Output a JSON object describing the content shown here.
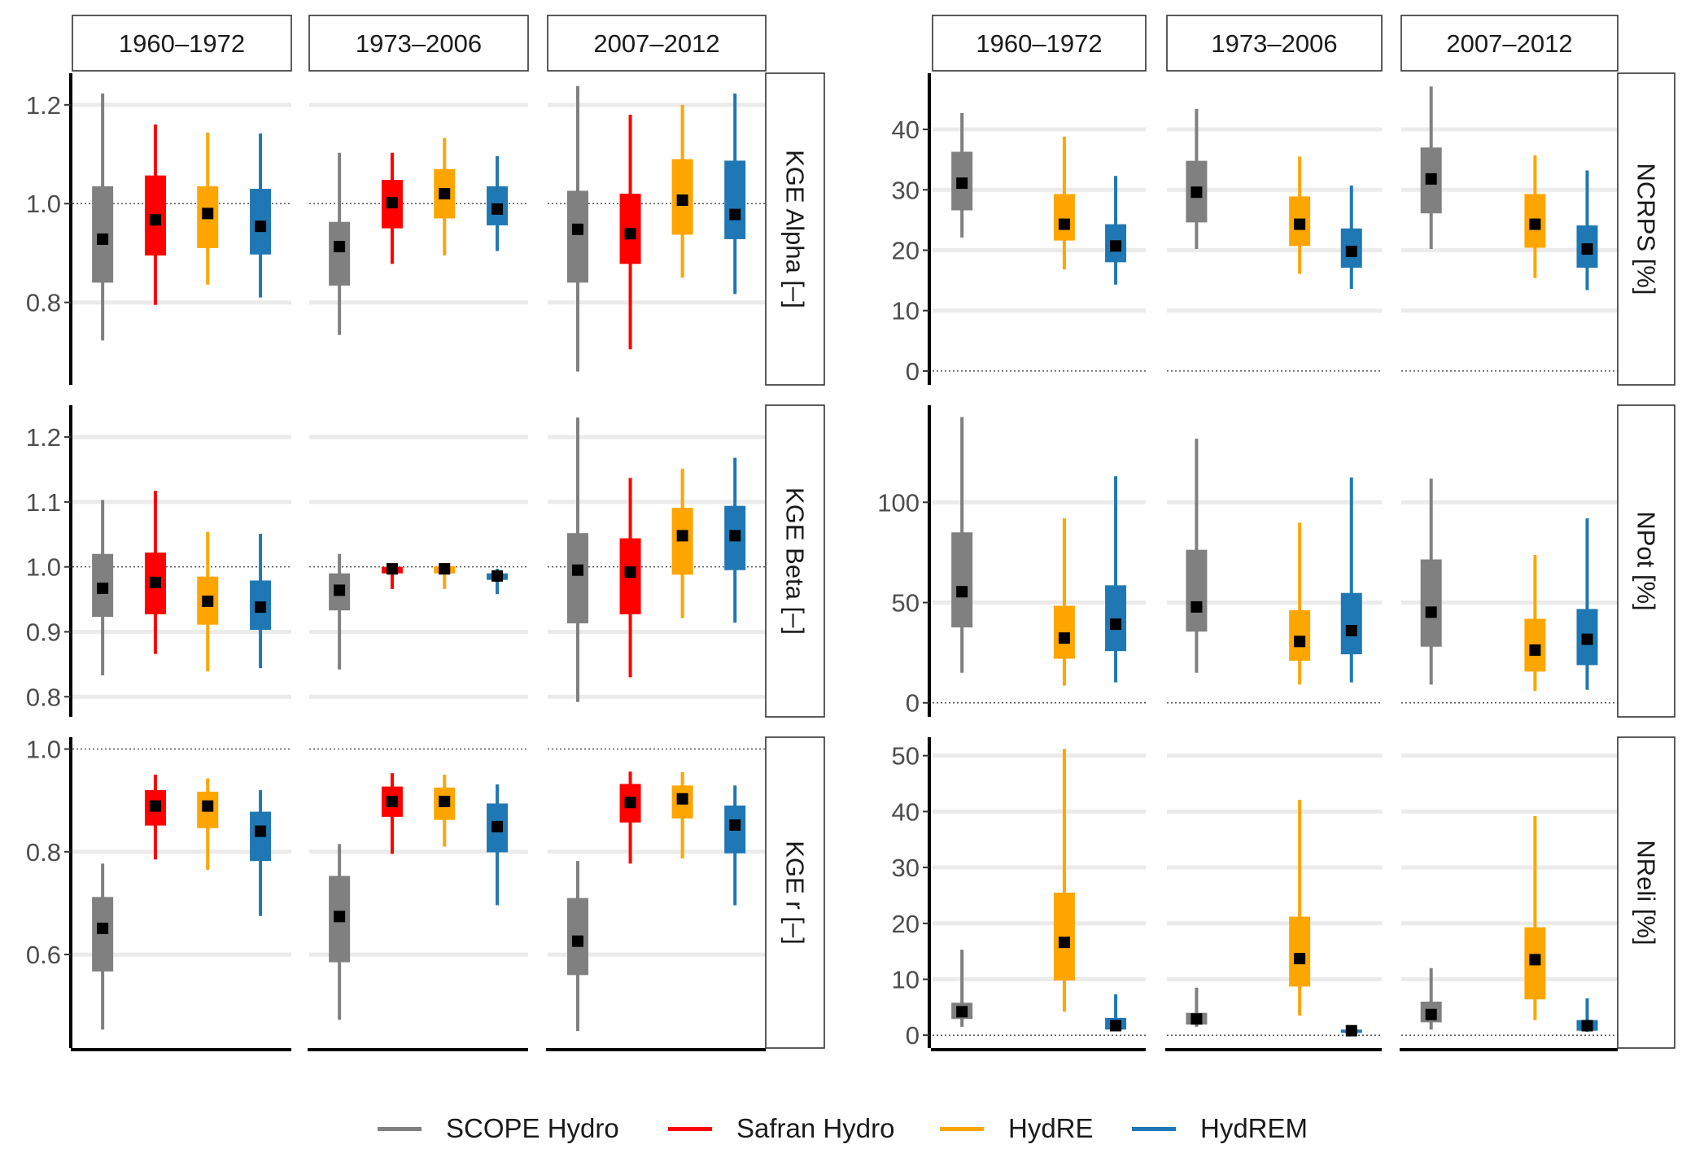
{
  "chart_data": {
    "type": "box",
    "box_fields": [
      "whisker_low",
      "box_low",
      "box_high",
      "whisker_high",
      "marker"
    ],
    "series": [
      {
        "name": "SCOPE Hydro",
        "color": "#808080"
      },
      {
        "name": "Safran Hydro",
        "color": "#ff0000"
      },
      {
        "name": "HydRE",
        "color": "#ffa500"
      },
      {
        "name": "HydREM",
        "color": "#1f78b4"
      }
    ],
    "periods": [
      "1960–1972",
      "1973–2006",
      "2007–2012"
    ],
    "grid_lines": true,
    "legend_position": "bottom",
    "panels": [
      {
        "grid": "left",
        "row": 0,
        "label": "KGE Alpha [–]",
        "ylim": [
          0.633,
          1.264
        ],
        "yticks": [
          0.8,
          1.0,
          1.2
        ],
        "tick_labels": [
          "0.8",
          "1.0",
          "1.2"
        ],
        "reference": 1.0,
        "columns": [
          [
            [
              0.723,
              0.84,
              1.035,
              1.223,
              0.928
            ],
            [
              0.795,
              0.895,
              1.057,
              1.16,
              0.967
            ],
            [
              0.836,
              0.91,
              1.035,
              1.144,
              0.98
            ],
            [
              0.81,
              0.897,
              1.03,
              1.142,
              0.954
            ]
          ],
          [
            [
              0.734,
              0.834,
              0.963,
              1.103,
              0.913
            ],
            [
              0.878,
              0.95,
              1.048,
              1.103,
              1.002
            ],
            [
              0.895,
              0.97,
              1.07,
              1.133,
              1.02
            ],
            [
              0.904,
              0.956,
              1.035,
              1.096,
              0.989
            ]
          ],
          [
            [
              0.66,
              0.84,
              1.026,
              1.238,
              0.948
            ],
            [
              0.705,
              0.878,
              1.02,
              1.18,
              0.939
            ],
            [
              0.85,
              0.937,
              1.09,
              1.2,
              1.007
            ],
            [
              0.817,
              0.928,
              1.087,
              1.223,
              0.978
            ]
          ]
        ]
      },
      {
        "grid": "left",
        "row": 1,
        "label": "KGE Beta [–]",
        "ylim": [
          0.769,
          1.249
        ],
        "yticks": [
          0.8,
          0.9,
          1.0,
          1.1,
          1.2
        ],
        "tick_labels": [
          "0.8",
          "0.9",
          "1.0",
          "1.1",
          "1.2"
        ],
        "reference": 1.0,
        "columns": [
          [
            [
              0.833,
              0.923,
              1.02,
              1.103,
              0.967
            ],
            [
              0.866,
              0.927,
              1.022,
              1.117,
              0.976
            ],
            [
              0.839,
              0.911,
              0.985,
              1.054,
              0.947
            ],
            [
              0.844,
              0.903,
              0.979,
              1.051,
              0.938
            ]
          ],
          [
            [
              0.842,
              0.933,
              0.99,
              1.02,
              0.964
            ],
            [
              0.966,
              0.99,
              1.0,
              1.005,
              0.997
            ],
            [
              0.966,
              0.99,
              1.001,
              1.006,
              0.997
            ],
            [
              0.958,
              0.98,
              0.99,
              0.997,
              0.986
            ]
          ],
          [
            [
              0.792,
              0.913,
              1.052,
              1.23,
              0.995
            ],
            [
              0.83,
              0.927,
              1.044,
              1.137,
              0.992
            ],
            [
              0.921,
              0.988,
              1.091,
              1.151,
              1.048
            ],
            [
              0.914,
              0.995,
              1.094,
              1.168,
              1.048
            ]
          ]
        ]
      },
      {
        "grid": "left",
        "row": 2,
        "label": "KGE r [–]",
        "ylim": [
          0.418,
          1.023
        ],
        "yticks": [
          0.6,
          0.8,
          1.0
        ],
        "tick_labels": [
          "0.6",
          "0.8",
          "1.0"
        ],
        "reference": 1.0,
        "columns": [
          [
            [
              0.454,
              0.567,
              0.712,
              0.777,
              0.651
            ],
            [
              0.785,
              0.851,
              0.92,
              0.95,
              0.889
            ],
            [
              0.765,
              0.846,
              0.917,
              0.943,
              0.889
            ],
            [
              0.675,
              0.782,
              0.878,
              0.92,
              0.84
            ]
          ],
          [
            [
              0.473,
              0.585,
              0.753,
              0.815,
              0.674
            ],
            [
              0.796,
              0.868,
              0.927,
              0.953,
              0.898
            ],
            [
              0.81,
              0.862,
              0.925,
              0.95,
              0.898
            ],
            [
              0.696,
              0.799,
              0.894,
              0.931,
              0.849
            ]
          ],
          [
            [
              0.451,
              0.56,
              0.71,
              0.782,
              0.626
            ],
            [
              0.777,
              0.857,
              0.932,
              0.956,
              0.896
            ],
            [
              0.787,
              0.865,
              0.929,
              0.955,
              0.903
            ],
            [
              0.696,
              0.797,
              0.89,
              0.929,
              0.852
            ]
          ]
        ]
      },
      {
        "grid": "right",
        "row": 0,
        "label": "NCRPS [%]",
        "ylim": [
          -2.3,
          49.3
        ],
        "yticks": [
          0,
          10,
          20,
          30,
          40
        ],
        "tick_labels": [
          "0",
          "10",
          "20",
          "30",
          "40"
        ],
        "reference": 0,
        "columns": [
          [
            [
              22.1,
              26.6,
              36.3,
              42.7,
              31.1
            ],
            null,
            [
              16.8,
              21.6,
              29.3,
              38.8,
              24.3
            ],
            [
              14.3,
              18.0,
              24.3,
              32.3,
              20.7
            ]
          ],
          [
            [
              20.2,
              24.6,
              34.8,
              43.4,
              29.6
            ],
            null,
            [
              16.1,
              20.7,
              28.9,
              35.5,
              24.3
            ],
            [
              13.6,
              17.1,
              23.6,
              30.7,
              19.8
            ]
          ],
          [
            [
              20.2,
              26.1,
              37.0,
              47.1,
              31.8
            ],
            null,
            [
              15.4,
              20.4,
              29.3,
              35.7,
              24.3
            ],
            [
              13.4,
              17.1,
              24.1,
              33.2,
              20.2
            ]
          ]
        ]
      },
      {
        "grid": "right",
        "row": 1,
        "label": "NPot [%]",
        "ylim": [
          -7,
          148.4
        ],
        "yticks": [
          0,
          50,
          100
        ],
        "tick_labels": [
          "0",
          "50",
          "100"
        ],
        "reference": 0,
        "columns": [
          [
            [
              15,
              37.6,
              85,
              142.5,
              55.4
            ],
            null,
            [
              8.6,
              22,
              48.4,
              92,
              32.3
            ],
            [
              10.2,
              25.8,
              58.6,
              113,
              39.2
            ]
          ],
          [
            [
              15,
              35.5,
              76.3,
              131.7,
              47.8
            ],
            null,
            [
              9.1,
              21,
              46.2,
              89.8,
              30.6
            ],
            [
              10.2,
              24.2,
              54.8,
              112.4,
              36
            ]
          ],
          [
            [
              9.1,
              28,
              71.5,
              111.8,
              45.2
            ],
            null,
            [
              5.9,
              15.6,
              41.9,
              73.7,
              26.3
            ],
            [
              6.5,
              18.8,
              46.8,
              92,
              31.7
            ]
          ]
        ]
      },
      {
        "grid": "right",
        "row": 2,
        "label": "NReli [%]",
        "ylim": [
          -2.3,
          53.3
        ],
        "yticks": [
          0,
          10,
          20,
          30,
          40,
          50
        ],
        "tick_labels": [
          "0",
          "10",
          "20",
          "30",
          "40",
          "50"
        ],
        "reference": 0,
        "columns": [
          [
            [
              1.5,
              2.9,
              5.8,
              15.3,
              4.2
            ],
            null,
            [
              4.2,
              9.8,
              25.5,
              51.2,
              16.6
            ],
            [
              0.8,
              1.0,
              3.1,
              7.3,
              1.7
            ]
          ],
          [
            [
              1.5,
              1.9,
              4.0,
              8.5,
              2.9
            ],
            null,
            [
              3.5,
              8.7,
              21.2,
              42.1,
              13.7
            ],
            [
              0.2,
              0.4,
              1.0,
              1.4,
              0.8
            ]
          ],
          [
            [
              1.0,
              2.3,
              6.0,
              12.0,
              3.7
            ],
            null,
            [
              2.7,
              6.4,
              19.3,
              39.2,
              13.5
            ],
            [
              0.6,
              0.8,
              2.7,
              6.6,
              1.7
            ]
          ]
        ]
      }
    ]
  }
}
